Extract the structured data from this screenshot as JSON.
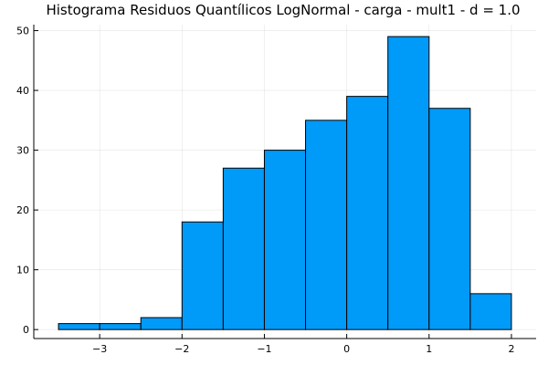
{
  "chart_data": {
    "type": "bar",
    "title": "Histograma Residuos Quantílicos LogNormal - carga - mult1 - d = 1.0",
    "xlabel": "",
    "ylabel": "",
    "bin_edges": [
      -3.5,
      -3.0,
      -2.5,
      -2.0,
      -1.5,
      -1.0,
      -0.5,
      0.0,
      0.5,
      1.0,
      1.5,
      2.0
    ],
    "values": [
      1,
      1,
      2,
      18,
      27,
      30,
      35,
      39,
      49,
      37,
      6
    ],
    "xlim": [
      -3.8,
      2.3
    ],
    "ylim": [
      -1.5,
      51
    ],
    "xticks": [
      -3,
      -2,
      -1,
      0,
      1,
      2
    ],
    "xtick_labels": [
      "−3",
      "−2",
      "−1",
      "0",
      "1",
      "2"
    ],
    "yticks": [
      0,
      10,
      20,
      30,
      40,
      50
    ],
    "ytick_labels": [
      "0",
      "10",
      "20",
      "30",
      "40",
      "50"
    ],
    "grid": true,
    "legend": "none",
    "bar_color": "#009af9",
    "edge_color": "#000000"
  }
}
